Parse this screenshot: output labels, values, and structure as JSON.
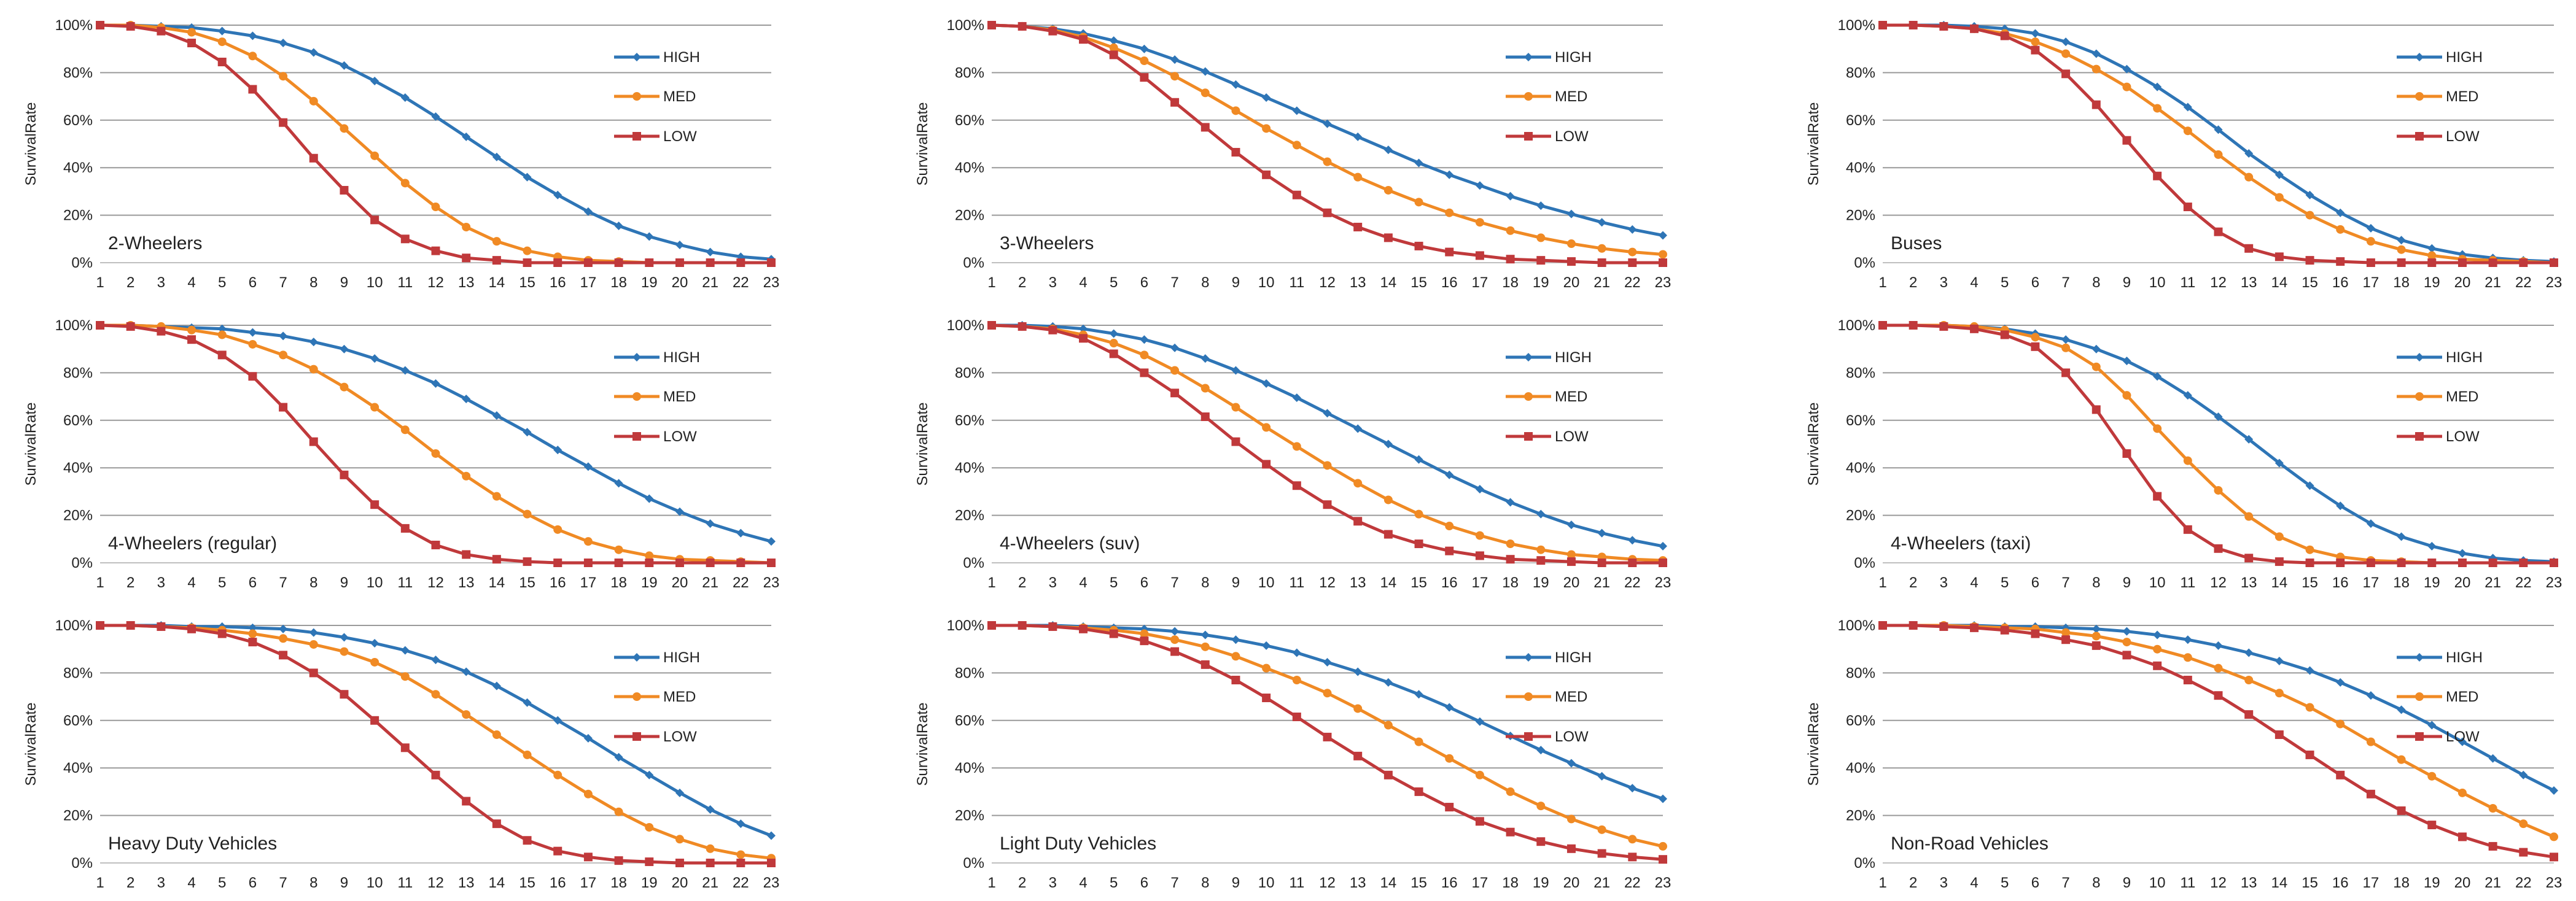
{
  "ylabel": "SurvivalRate",
  "x": [
    1,
    2,
    3,
    4,
    5,
    6,
    7,
    8,
    9,
    10,
    11,
    12,
    13,
    14,
    15,
    16,
    17,
    18,
    19,
    20,
    21,
    22,
    23
  ],
  "ylim": [
    0,
    100
  ],
  "yticks": [
    "0%",
    "20%",
    "40%",
    "60%",
    "80%",
    "100%"
  ],
  "series_names": [
    "HIGH",
    "MED",
    "LOW"
  ],
  "colors": {
    "HIGH": "#2e75b6",
    "MED": "#f08a24",
    "LOW": "#c0393b",
    "grid": "#9a9a9a",
    "axis": "#bfbfbf",
    "text": "#222222"
  },
  "chart_data": [
    {
      "type": "line",
      "title": "2-Wheelers",
      "xlabel": "",
      "ylabel": "SurvivalRate",
      "legend": "right",
      "series": [
        {
          "name": "HIGH",
          "values": [
            100,
            100,
            99.5,
            99,
            97.5,
            95.5,
            92.5,
            88.5,
            83,
            76.5,
            69.5,
            61.5,
            53,
            44.5,
            36,
            28.5,
            21.5,
            15.5,
            11,
            7.5,
            4.5,
            2.5,
            1.5
          ]
        },
        {
          "name": "MED",
          "values": [
            100,
            100,
            99,
            97,
            93,
            87,
            78.5,
            68,
            56.5,
            45,
            33.5,
            23.5,
            15,
            9,
            5,
            2.5,
            1,
            0.5,
            0,
            0,
            0,
            0,
            0
          ]
        },
        {
          "name": "LOW",
          "values": [
            100,
            99.5,
            97.5,
            92.5,
            84.5,
            73,
            59,
            44,
            30.5,
            18,
            10,
            5,
            2,
            1,
            0,
            0,
            0,
            0,
            0,
            0,
            0,
            0,
            0
          ]
        }
      ]
    },
    {
      "type": "line",
      "title": "3-Wheelers",
      "xlabel": "",
      "ylabel": "SurvivalRate",
      "legend": "right",
      "series": [
        {
          "name": "HIGH",
          "values": [
            100,
            99.5,
            98.5,
            96.5,
            93.5,
            90,
            85.5,
            80.5,
            75,
            69.5,
            64,
            58.5,
            53,
            47.5,
            42,
            37,
            32.5,
            28,
            24,
            20.5,
            17,
            14,
            11.5
          ]
        },
        {
          "name": "MED",
          "values": [
            100,
            99.5,
            98,
            95,
            90.5,
            85,
            78.5,
            71.5,
            64,
            56.5,
            49.5,
            42.5,
            36,
            30.5,
            25.5,
            21,
            17,
            13.5,
            10.5,
            8,
            6,
            4.5,
            3.5
          ]
        },
        {
          "name": "LOW",
          "values": [
            100,
            99.5,
            97.5,
            94,
            87.5,
            78,
            67.5,
            57,
            46.5,
            37,
            28.5,
            21,
            15,
            10.5,
            7,
            4.5,
            3,
            1.5,
            1,
            0.5,
            0,
            0,
            0
          ]
        }
      ]
    },
    {
      "type": "line",
      "title": "Buses",
      "xlabel": "",
      "ylabel": "SurvivalRate",
      "legend": "right",
      "series": [
        {
          "name": "HIGH",
          "values": [
            100,
            100,
            100,
            99.5,
            98.5,
            96.5,
            93,
            88,
            81.5,
            74,
            65.5,
            56,
            46,
            37,
            28.5,
            21,
            14.5,
            9.5,
            6,
            3.5,
            2,
            1,
            0.5
          ]
        },
        {
          "name": "MED",
          "values": [
            100,
            100,
            99.5,
            98.5,
            96.5,
            93,
            88,
            81.5,
            74,
            65,
            55.5,
            45.5,
            36,
            27.5,
            20,
            14,
            9,
            5.5,
            3,
            1.5,
            1,
            0.5,
            0
          ]
        },
        {
          "name": "LOW",
          "values": [
            100,
            100,
            99.5,
            98.5,
            95.5,
            89.5,
            79.5,
            66.5,
            51.5,
            36.5,
            23.5,
            13,
            6,
            2.5,
            1,
            0.5,
            0,
            0,
            0,
            0,
            0,
            0,
            0
          ]
        }
      ]
    },
    {
      "type": "line",
      "title": "4-Wheelers (regular)",
      "xlabel": "",
      "ylabel": "SurvivalRate",
      "legend": "right",
      "series": [
        {
          "name": "HIGH",
          "values": [
            100,
            100,
            99.5,
            99,
            98.5,
            97,
            95.5,
            93,
            90,
            86,
            81,
            75.5,
            69,
            62,
            55,
            47.5,
            40.5,
            33.5,
            27,
            21.5,
            16.5,
            12.5,
            9
          ]
        },
        {
          "name": "MED",
          "values": [
            100,
            100,
            99.5,
            98,
            96,
            92,
            87.5,
            81.5,
            74,
            65.5,
            56,
            46,
            36.5,
            28,
            20.5,
            14,
            9,
            5.5,
            3,
            1.5,
            1,
            0.5,
            0
          ]
        },
        {
          "name": "LOW",
          "values": [
            100,
            99.5,
            97.5,
            94,
            87.5,
            78.5,
            65.5,
            51,
            37,
            24.5,
            14.5,
            7.5,
            3.5,
            1.5,
            0.5,
            0,
            0,
            0,
            0,
            0,
            0,
            0,
            0
          ]
        }
      ]
    },
    {
      "type": "line",
      "title": "4-Wheelers (suv)",
      "xlabel": "",
      "ylabel": "SurvivalRate",
      "legend": "right",
      "series": [
        {
          "name": "HIGH",
          "values": [
            100,
            100,
            99.5,
            98.5,
            96.5,
            94,
            90.5,
            86,
            81,
            75.5,
            69.5,
            63,
            56.5,
            50,
            43.5,
            37,
            31,
            25.5,
            20.5,
            16,
            12.5,
            9.5,
            7
          ]
        },
        {
          "name": "MED",
          "values": [
            100,
            99.5,
            98.5,
            96,
            92.5,
            87.5,
            81,
            73.5,
            65.5,
            57,
            49,
            41,
            33.5,
            26.5,
            20.5,
            15.5,
            11.5,
            8,
            5.5,
            3.5,
            2.5,
            1.5,
            1
          ]
        },
        {
          "name": "LOW",
          "values": [
            100,
            99.5,
            98,
            94.5,
            88,
            80,
            71.5,
            61.5,
            51,
            41.5,
            32.5,
            24.5,
            17.5,
            12,
            8,
            5,
            3,
            1.5,
            1,
            0.5,
            0,
            0,
            0
          ]
        }
      ]
    },
    {
      "type": "line",
      "title": "4-Wheelers (taxi)",
      "xlabel": "",
      "ylabel": "SurvivalRate",
      "legend": "right",
      "series": [
        {
          "name": "HIGH",
          "values": [
            100,
            100,
            100,
            99.5,
            98.5,
            96.5,
            94,
            90,
            85,
            78.5,
            70.5,
            61.5,
            52,
            42,
            32.5,
            24,
            16.5,
            11,
            7,
            4,
            2,
            1,
            0.5
          ]
        },
        {
          "name": "MED",
          "values": [
            100,
            100,
            100,
            99.5,
            98,
            95,
            90.5,
            82.5,
            70.5,
            56.5,
            43,
            30.5,
            19.5,
            11,
            5.5,
            2.5,
            1,
            0.5,
            0,
            0,
            0,
            0,
            0
          ]
        },
        {
          "name": "LOW",
          "values": [
            100,
            100,
            99.5,
            98.5,
            96,
            91,
            80,
            64.5,
            46,
            28,
            14,
            6,
            2,
            0.5,
            0,
            0,
            0,
            0,
            0,
            0,
            0,
            0,
            0
          ]
        }
      ]
    },
    {
      "type": "line",
      "title": "Heavy Duty Vehicles",
      "xlabel": "",
      "ylabel": "SurvivalRate",
      "legend": "right",
      "series": [
        {
          "name": "HIGH",
          "values": [
            100,
            100,
            100,
            99.5,
            99.5,
            99,
            98.5,
            97,
            95,
            92.5,
            89.5,
            85.5,
            80.5,
            74.5,
            67.5,
            60,
            52.5,
            44.5,
            37,
            29.5,
            22.5,
            16.5,
            11.5
          ]
        },
        {
          "name": "MED",
          "values": [
            100,
            100,
            99.5,
            99,
            98,
            96.5,
            94.5,
            92,
            89,
            84.5,
            78.5,
            71,
            62.5,
            54,
            45.5,
            37,
            29,
            21.5,
            15,
            10,
            6,
            3.5,
            2
          ]
        },
        {
          "name": "LOW",
          "values": [
            100,
            100,
            99.5,
            98.5,
            96.5,
            93,
            87.5,
            80,
            71,
            60,
            48.5,
            37,
            26,
            16.5,
            9.5,
            5,
            2.5,
            1,
            0.5,
            0,
            0,
            0,
            0
          ]
        }
      ]
    },
    {
      "type": "line",
      "title": "Light Duty Vehicles",
      "xlabel": "",
      "ylabel": "SurvivalRate",
      "legend": "right",
      "series": [
        {
          "name": "HIGH",
          "values": [
            100,
            100,
            100,
            99.5,
            99,
            98.5,
            97.5,
            96,
            94,
            91.5,
            88.5,
            84.5,
            80.5,
            76,
            71,
            65.5,
            59.5,
            53.5,
            47.5,
            42,
            36.5,
            31.5,
            27
          ]
        },
        {
          "name": "MED",
          "values": [
            100,
            100,
            99.5,
            99,
            98,
            96.5,
            94,
            91,
            87,
            82,
            77,
            71.5,
            65,
            58,
            51,
            44,
            37,
            30,
            24,
            18.5,
            14,
            10,
            7
          ]
        },
        {
          "name": "LOW",
          "values": [
            100,
            100,
            99.5,
            98.5,
            96.5,
            93.5,
            89,
            83.5,
            77,
            69.5,
            61.5,
            53,
            45,
            37,
            30,
            23.5,
            17.5,
            13,
            9,
            6,
            4,
            2.5,
            1.5
          ]
        }
      ]
    },
    {
      "type": "line",
      "title": "Non-Road Vehicles",
      "xlabel": "",
      "ylabel": "SurvivalRate",
      "legend": "right",
      "series": [
        {
          "name": "HIGH",
          "values": [
            100,
            100,
            100,
            100,
            99.5,
            99.5,
            99,
            98.5,
            97.5,
            96,
            94,
            91.5,
            88.5,
            85,
            81,
            76,
            70.5,
            64.5,
            58,
            51,
            44,
            37,
            30.5
          ]
        },
        {
          "name": "MED",
          "values": [
            100,
            100,
            100,
            99.5,
            99,
            98.5,
            97,
            95.5,
            93,
            90,
            86.5,
            82,
            77,
            71.5,
            65.5,
            58.5,
            51,
            43.5,
            36.5,
            29.5,
            23,
            16.5,
            11
          ]
        },
        {
          "name": "LOW",
          "values": [
            100,
            100,
            99.5,
            99,
            98,
            96.5,
            94,
            91.5,
            87.5,
            83,
            77,
            70.5,
            62.5,
            54,
            45.5,
            37,
            29,
            22,
            16,
            11,
            7,
            4.5,
            2.5
          ]
        }
      ]
    }
  ]
}
